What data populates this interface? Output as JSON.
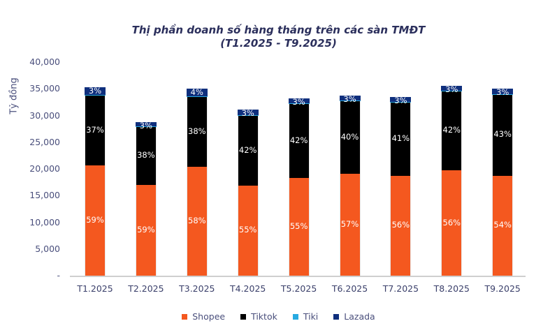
{
  "title": {
    "line1": "Thị phần doanh số hàng tháng trên các sàn TMĐT",
    "line2": "(T1.2025 - T9.2025)"
  },
  "y_axis": {
    "label": "Tỷ đồng",
    "ticks": [
      "40,000",
      "35,000",
      "30,000",
      "25,000",
      "20,000",
      "15,000",
      "10,000",
      "5,000",
      "-"
    ]
  },
  "legend": [
    {
      "name": "Shopee",
      "color": "#f4581f"
    },
    {
      "name": "Tiktok",
      "color": "#000000"
    },
    {
      "name": "Tiki",
      "color": "#27aae1"
    },
    {
      "name": "Lazada",
      "color": "#0f2f7d"
    }
  ],
  "chart_data": {
    "type": "bar",
    "stacked": true,
    "title": "Thị phần doanh số hàng tháng trên các sàn TMĐT (T1.2025 - T9.2025)",
    "xlabel": "",
    "ylabel": "Tỷ đồng",
    "ylim": [
      0,
      40000
    ],
    "yticks": [
      0,
      5000,
      10000,
      15000,
      20000,
      25000,
      30000,
      35000,
      40000
    ],
    "grid": false,
    "legend_position": "bottom",
    "categories": [
      "T1.2025",
      "T2.2025",
      "T3.2025",
      "T4.2025",
      "T5.2025",
      "T6.2025",
      "T7.2025",
      "T8.2025",
      "T9.2025"
    ],
    "totals_estimated": [
      35300,
      28700,
      35000,
      31100,
      33200,
      33700,
      33500,
      35600,
      35000
    ],
    "series": [
      {
        "name": "Shopee",
        "color": "#f4581f",
        "values": [
          20650,
          17000,
          20400,
          16900,
          18300,
          19100,
          18700,
          19700,
          18700
        ],
        "labels": [
          "59%",
          "59%",
          "58%",
          "55%",
          "55%",
          "57%",
          "56%",
          "56%",
          "54%"
        ]
      },
      {
        "name": "Tiktok",
        "color": "#000000",
        "values": [
          13100,
          10900,
          13100,
          13100,
          13900,
          13600,
          13800,
          14900,
          15300
        ],
        "labels": [
          "37%",
          "38%",
          "38%",
          "42%",
          "42%",
          "40%",
          "41%",
          "42%",
          "43%"
        ]
      },
      {
        "name": "Tiki",
        "color": "#27aae1",
        "values": [
          50,
          50,
          150,
          50,
          50,
          50,
          50,
          50,
          50
        ],
        "labels": [
          "",
          "",
          "",
          "",
          "",
          "",
          "",
          "",
          ""
        ]
      },
      {
        "name": "Lazada",
        "color": "#0f2f7d",
        "values": [
          1500,
          750,
          1350,
          1050,
          950,
          950,
          950,
          950,
          950
        ],
        "labels": [
          "3%",
          "3%",
          "4%",
          "3%",
          "3%",
          "3%",
          "3%",
          "3%",
          "3%"
        ]
      }
    ]
  }
}
